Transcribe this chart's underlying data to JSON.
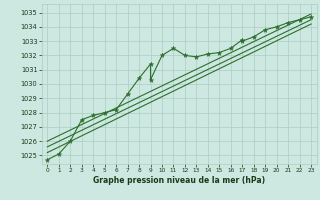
{
  "bg_color": "#cce8e0",
  "grid_color": "#aaccC4",
  "line_color": "#2d6e2d",
  "marker_color": "#2d6e2d",
  "text_color": "#1a3a1a",
  "xlabel": "Graphe pression niveau de la mer (hPa)",
  "ylabel_ticks": [
    1025,
    1026,
    1027,
    1028,
    1029,
    1030,
    1031,
    1032,
    1033,
    1034,
    1035
  ],
  "xlim": [
    -0.5,
    23.5
  ],
  "ylim": [
    1024.4,
    1035.6
  ],
  "xticks": [
    0,
    1,
    2,
    3,
    4,
    5,
    6,
    7,
    8,
    9,
    10,
    11,
    12,
    13,
    14,
    15,
    16,
    17,
    18,
    19,
    20,
    21,
    22,
    23
  ],
  "main_series_x": [
    0,
    1,
    2,
    3,
    4,
    5,
    6,
    7,
    8,
    9,
    9,
    10,
    11,
    12,
    13,
    14,
    15,
    16,
    17,
    17,
    18,
    19,
    20,
    21,
    22,
    23
  ],
  "main_series_y": [
    1024.7,
    1025.1,
    1026.0,
    1027.5,
    1027.8,
    1028.0,
    1028.2,
    1029.3,
    1030.4,
    1031.4,
    1030.3,
    1032.0,
    1032.5,
    1032.0,
    1031.9,
    1032.1,
    1032.2,
    1032.5,
    1033.1,
    1033.0,
    1033.3,
    1033.8,
    1034.0,
    1034.3,
    1034.5,
    1034.7
  ],
  "trend_line1_x": [
    0,
    23
  ],
  "trend_line1_y": [
    1025.2,
    1034.2
  ],
  "trend_line2_x": [
    0,
    23
  ],
  "trend_line2_y": [
    1025.6,
    1034.5
  ],
  "trend_line3_x": [
    0,
    23
  ],
  "trend_line3_y": [
    1026.0,
    1034.9
  ]
}
